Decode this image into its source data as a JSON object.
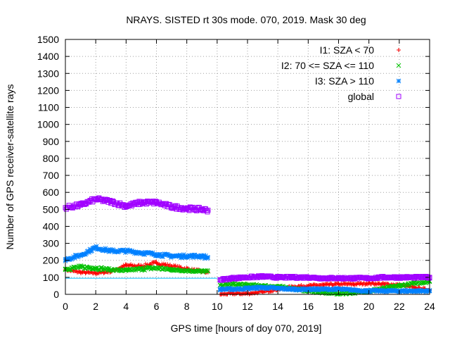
{
  "chart_data": {
    "type": "scatter",
    "title": "NRAYS. SISTED rt 30s mode. 070, 2019. Mask 30 deg",
    "xlabel": "GPS time [hours of doy 070, 2019]",
    "ylabel": "Number of GPS receiver-satellite rays",
    "xlim": [
      0,
      24
    ],
    "ylim": [
      0,
      1500
    ],
    "xticks": [
      0,
      2,
      4,
      6,
      8,
      10,
      12,
      14,
      16,
      18,
      20,
      22,
      24
    ],
    "yticks": [
      0,
      100,
      200,
      300,
      400,
      500,
      600,
      700,
      800,
      900,
      1000,
      1100,
      1200,
      1300,
      1400,
      1500
    ],
    "grid": true,
    "legend_position": "top-right",
    "reference_line": {
      "y": 95,
      "x_range": [
        0,
        10
      ],
      "color": "#00bfff"
    },
    "series": [
      {
        "name": "I1: SZA < 70",
        "marker": "plus",
        "color": "#ff0000",
        "x": [
          0,
          1,
          2,
          3,
          4,
          5,
          6,
          7,
          8,
          9,
          9.4,
          10.2,
          11,
          12,
          13,
          14,
          15,
          16,
          17,
          18,
          19,
          20,
          21,
          22,
          23,
          24
        ],
        "y": [
          145,
          130,
          125,
          135,
          170,
          165,
          185,
          165,
          150,
          135,
          130,
          0,
          5,
          5,
          15,
          30,
          45,
          50,
          55,
          60,
          60,
          65,
          60,
          55,
          40,
          25
        ]
      },
      {
        "name": "I2: 70 <= SZA <= 110",
        "marker": "cross",
        "color": "#00c000",
        "x": [
          0,
          1,
          2,
          3,
          4,
          5,
          6,
          7,
          8,
          9,
          9.4,
          10.2,
          11,
          12,
          13,
          14,
          15,
          16,
          17,
          18,
          19,
          20,
          21,
          22,
          23,
          24
        ],
        "y": [
          150,
          160,
          155,
          145,
          140,
          150,
          155,
          145,
          140,
          135,
          135,
          55,
          60,
          55,
          50,
          45,
          35,
          20,
          10,
          5,
          10,
          20,
          35,
          50,
          65,
          75
        ]
      },
      {
        "name": "I3: SZA > 110",
        "marker": "star",
        "color": "#0080ff",
        "x": [
          0,
          1,
          2,
          3,
          4,
          5,
          6,
          7,
          8,
          9,
          9.4,
          10.2,
          11,
          12,
          13,
          14,
          15,
          16,
          17,
          18,
          19,
          20,
          21,
          22,
          23,
          24
        ],
        "y": [
          205,
          230,
          275,
          255,
          255,
          245,
          235,
          225,
          225,
          225,
          215,
          30,
          30,
          35,
          40,
          35,
          30,
          30,
          30,
          30,
          25,
          20,
          20,
          20,
          20,
          20
        ]
      },
      {
        "name": "global",
        "marker": "square",
        "color": "#a000ff",
        "x": [
          0,
          1,
          2,
          3,
          4,
          5,
          6,
          7,
          8,
          9,
          9.4,
          10.2,
          11,
          12,
          13,
          14,
          15,
          16,
          17,
          18,
          19,
          20,
          21,
          22,
          23,
          24
        ],
        "y": [
          510,
          525,
          560,
          545,
          520,
          540,
          540,
          515,
          505,
          500,
          495,
          85,
          95,
          100,
          105,
          100,
          100,
          100,
          95,
          95,
          95,
          95,
          100,
          100,
          100,
          100
        ]
      }
    ]
  }
}
